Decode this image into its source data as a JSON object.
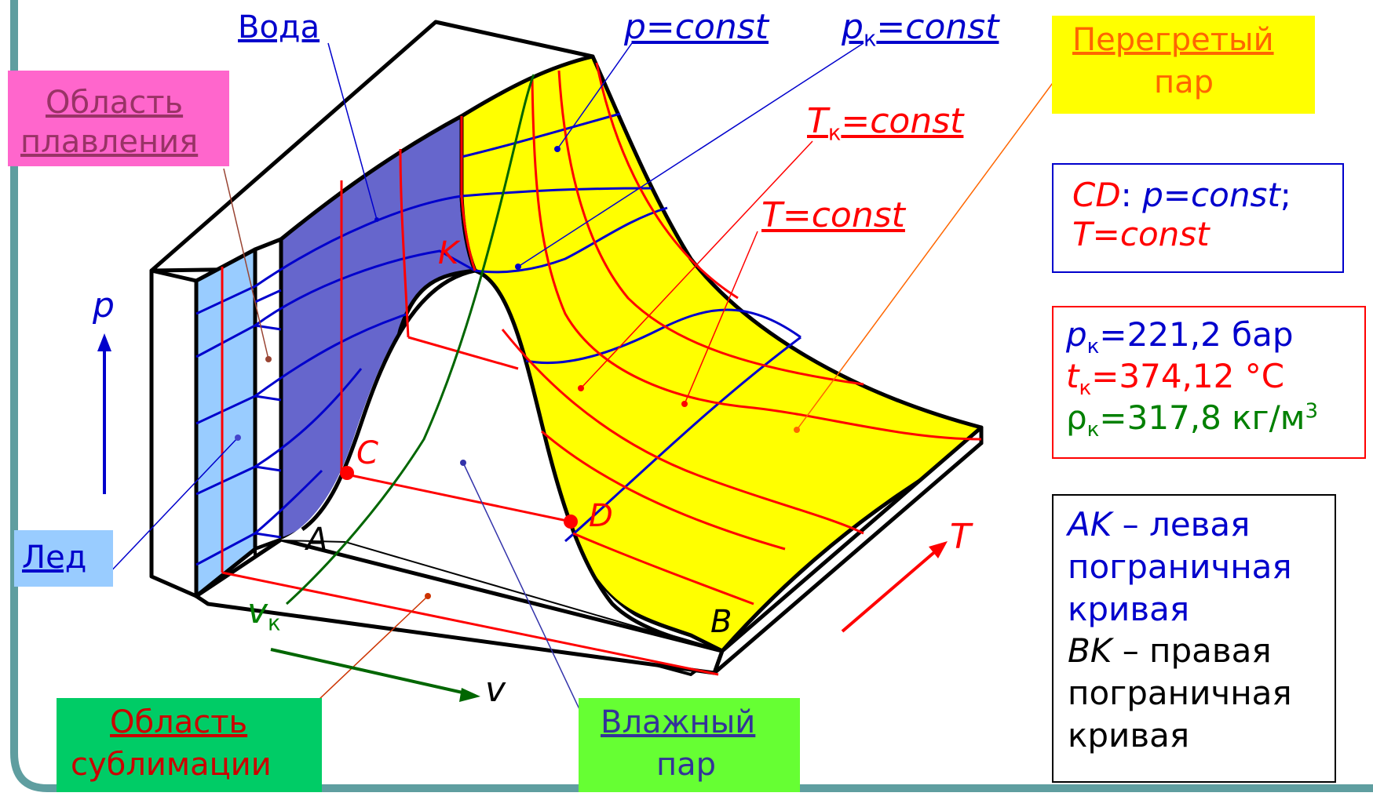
{
  "regions": {
    "water": "Вода",
    "melting_1": "Область",
    "melting_2": "плавления",
    "superheated_1": "Перегретый",
    "superheated_2": "пар",
    "ice": "Лед",
    "sublimation_1": "Область",
    "sublimation_2": "сублимации",
    "wet_steam_1": "Влажный",
    "wet_steam_2": "пар"
  },
  "isolines": {
    "p_const": "p=const",
    "pk_p": "p",
    "pk_sub": "к",
    "pk_rest": "=const",
    "tk_t": "T",
    "tk_sub": "к",
    "tk_rest": "=const",
    "t_const": "T=const"
  },
  "points": {
    "K": "K",
    "C": "C",
    "D": "D",
    "A": "A",
    "B": "B"
  },
  "axes": {
    "p": "p",
    "T": "T",
    "v": "v",
    "vk_v": "v",
    "vk_sub": "к"
  },
  "info_cd": {
    "line1_a": "CD",
    "line1_b": ": ",
    "line1_c": "p=const",
    "line1_d": ";",
    "line2": "T=const"
  },
  "critical": {
    "p_sym": "p",
    "p_sub": "к",
    "p_val": "=221,2 бар",
    "t_sym": "t",
    "t_sub": "к",
    "t_val": "=374,12 °С",
    "rho_sym": "ρ",
    "rho_sub": "к",
    "rho_val": "=317,8 кг/м",
    "rho_sup": "3"
  },
  "boundary": {
    "ak": "AK",
    "ak_text1": " – левая",
    "ak_text2": "пограничная",
    "ak_text3": "кривая",
    "bk": "BK",
    "bk_text1": " – правая",
    "bk_text2": "пограничная",
    "bk_text3": "кривая"
  },
  "colors": {
    "water": "#6666cc",
    "ice": "#99ccff",
    "steam": "#ffff00",
    "melting_box": "#ff66cc",
    "ice_box": "#99ccff",
    "sublimation_box": "#00cc66",
    "wet_steam_box": "#66ff33",
    "superheated_box": "#ffff00",
    "frame": "#5f9ea0"
  }
}
